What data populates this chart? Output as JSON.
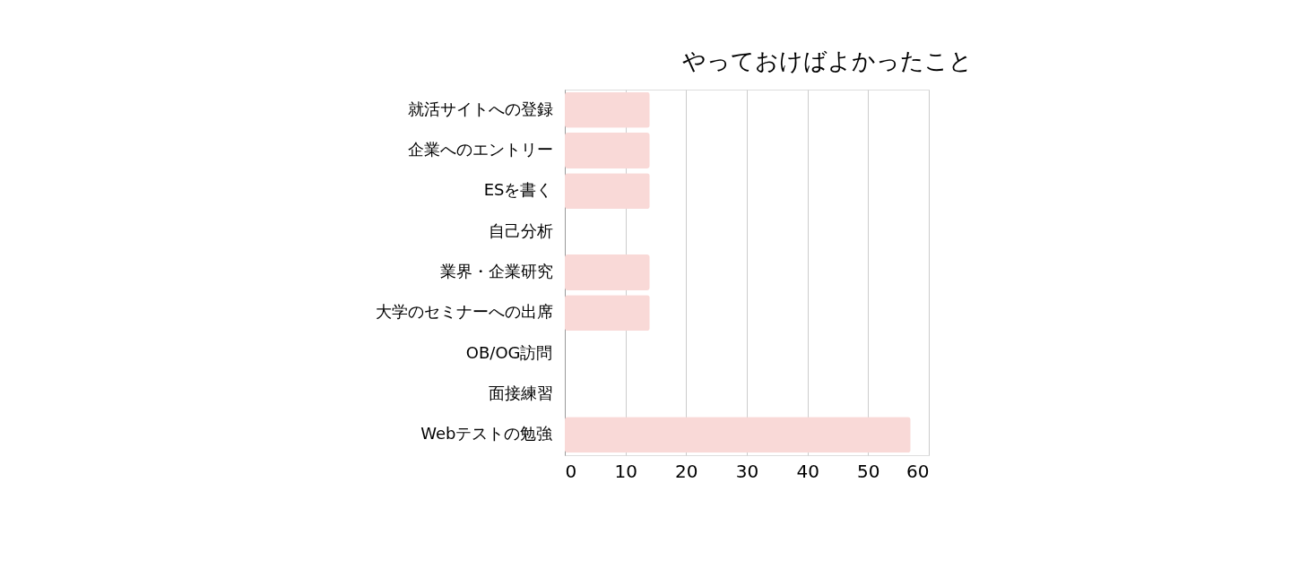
{
  "chart_data": {
    "type": "bar",
    "orientation": "horizontal",
    "title": "やっておけばよかったこと",
    "categories": [
      "就活サイトへの登録",
      "企業へのエントリー",
      "ESを書く",
      "自己分析",
      "業界・企業研究",
      "大学のセミナーへの出席",
      "OB/OG訪問",
      "面接練習",
      "Webテストの勉強"
    ],
    "values": [
      14,
      14,
      14,
      0,
      14,
      14,
      0,
      0,
      57
    ],
    "color": "#f9d9d7",
    "xlim": [
      0,
      60
    ],
    "xticks": [
      0,
      10,
      20,
      30,
      40,
      50,
      60
    ],
    "grid": "x"
  }
}
